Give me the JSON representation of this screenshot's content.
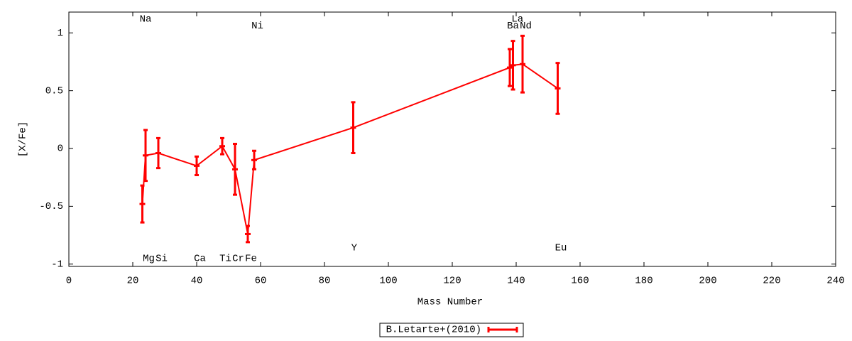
{
  "chart_data": {
    "type": "errorline",
    "xlabel": "Mass Number",
    "ylabel": "[X/Fe]",
    "xlim": [
      0,
      240
    ],
    "xticks": [
      0,
      20,
      40,
      60,
      80,
      100,
      120,
      140,
      160,
      180,
      200,
      220,
      240
    ],
    "ylim": [
      -1.02,
      1.18
    ],
    "yticks": [
      -1,
      -0.5,
      0,
      0.5,
      1
    ],
    "legend": "bottom",
    "series": [
      {
        "name": "B.Letarte+(2010)",
        "color": "#ff0000",
        "x": [
          23,
          24,
          28,
          40,
          48,
          52,
          56,
          58,
          89,
          138,
          139,
          142,
          153
        ],
        "values": [
          -0.48,
          -0.06,
          -0.04,
          -0.15,
          0.02,
          -0.18,
          -0.74,
          -0.1,
          0.18,
          0.7,
          0.72,
          0.73,
          0.52
        ],
        "errors": [
          0.16,
          0.22,
          0.13,
          0.08,
          0.07,
          0.22,
          0.07,
          0.08,
          0.22,
          0.16,
          0.21,
          0.245,
          0.22
        ]
      }
    ],
    "annotations": [
      {
        "text": "Na",
        "x": 24,
        "y": 1.12
      },
      {
        "text": "Mg",
        "x": 25,
        "y": -0.95
      },
      {
        "text": "Si",
        "x": 29,
        "y": -0.95
      },
      {
        "text": "Ca",
        "x": 41,
        "y": -0.95
      },
      {
        "text": "Ti",
        "x": 49,
        "y": -0.95
      },
      {
        "text": "Cr",
        "x": 53,
        "y": -0.95
      },
      {
        "text": "Fe",
        "x": 57,
        "y": -0.95
      },
      {
        "text": "Ni",
        "x": 59,
        "y": 1.06
      },
      {
        "text": "Y",
        "x": 89.3,
        "y": -0.86
      },
      {
        "text": "Ba",
        "x": 139,
        "y": 1.06
      },
      {
        "text": "La",
        "x": 140.4,
        "y": 1.12
      },
      {
        "text": "Nd",
        "x": 143,
        "y": 1.06
      },
      {
        "text": "Eu",
        "x": 154,
        "y": -0.86
      }
    ]
  }
}
